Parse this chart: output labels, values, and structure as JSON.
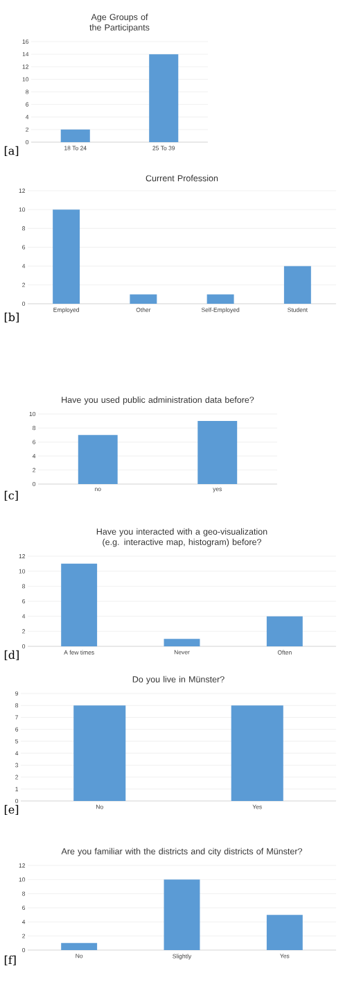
{
  "chart_data": [
    {
      "type": "bar",
      "title": "Age Groups of the Participants",
      "categories": [
        "18 To 24",
        "25 To 39"
      ],
      "values": [
        2,
        14
      ],
      "color": "#5b9bd5",
      "ylim": [
        0,
        16
      ],
      "yticks": [
        0,
        2,
        4,
        6,
        8,
        10,
        12,
        14,
        16
      ],
      "grid": "y",
      "annotations": [
        "[a]"
      ]
    },
    {
      "type": "bar",
      "title": "Current Profession",
      "categories": [
        "Employed",
        "Other",
        "Self-Employed",
        "Student"
      ],
      "values": [
        10,
        1,
        1,
        4
      ],
      "color": "#5b9bd5",
      "ylim": [
        0,
        12
      ],
      "yticks": [
        0,
        2,
        4,
        6,
        8,
        10,
        12
      ],
      "grid": "y",
      "annotations": [
        "[b]"
      ]
    },
    {
      "type": "bar",
      "title": "Have you used public administration data before?",
      "categories": [
        "no",
        "yes"
      ],
      "values": [
        7,
        9
      ],
      "color": "#5b9bd5",
      "ylim": [
        0,
        10
      ],
      "yticks": [
        0,
        2,
        4,
        6,
        8,
        10
      ],
      "grid": "y",
      "annotations": [
        "[c]"
      ]
    },
    {
      "type": "bar",
      "title": "Have you interacted with a geo-visualization (e.g. interactive map, histogram) before?",
      "categories": [
        "A few times",
        "Never",
        "Often"
      ],
      "values": [
        11,
        1,
        4
      ],
      "color": "#5b9bd5",
      "ylim": [
        0,
        12
      ],
      "yticks": [
        0,
        2,
        4,
        6,
        8,
        10,
        12
      ],
      "grid": "y",
      "annotations": [
        "[d]"
      ]
    },
    {
      "type": "bar",
      "title": "Do you live in Münster?",
      "categories": [
        "No",
        "Yes"
      ],
      "values": [
        8,
        8
      ],
      "color": "#5b9bd5",
      "ylim": [
        0,
        9
      ],
      "yticks": [
        0,
        1,
        2,
        3,
        4,
        5,
        6,
        7,
        8,
        9
      ],
      "grid": "y",
      "annotations": [
        "[e]"
      ]
    },
    {
      "type": "bar",
      "title": "Are you familiar with the districts and city districts of Münster?",
      "categories": [
        "No",
        "Slightly",
        "Yes"
      ],
      "values": [
        1,
        10,
        5
      ],
      "color": "#5b9bd5",
      "ylim": [
        0,
        12
      ],
      "yticks": [
        0,
        2,
        4,
        6,
        8,
        10,
        12
      ],
      "grid": "y",
      "annotations": [
        "[f]"
      ]
    }
  ]
}
